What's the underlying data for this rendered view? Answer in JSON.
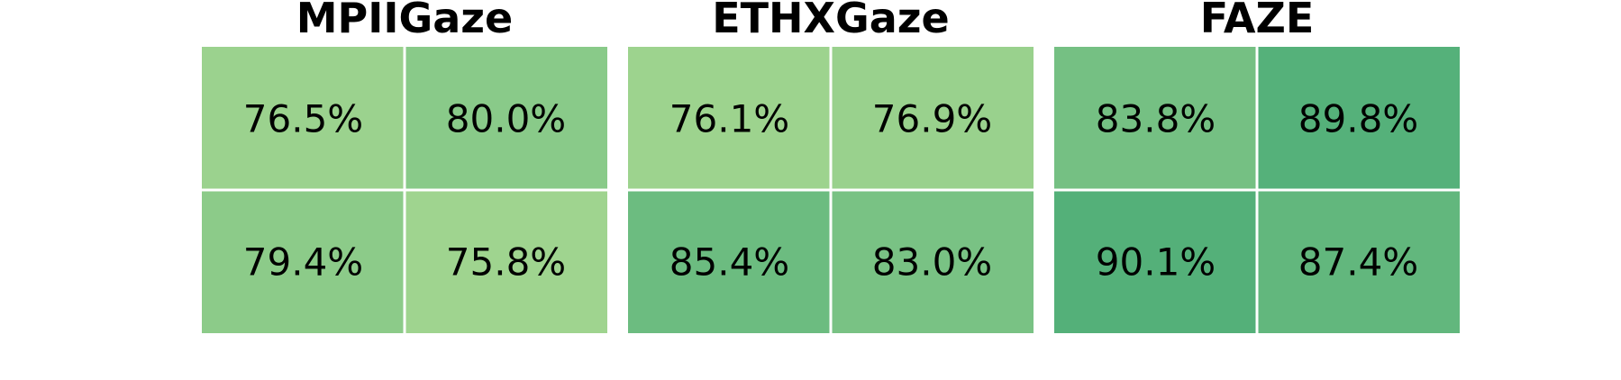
{
  "chart_data": [
    {
      "type": "heatmap",
      "title": "MPIIGaze",
      "rows": 2,
      "cols": 2,
      "values": [
        [
          76.5,
          80.0
        ],
        [
          79.4,
          75.8
        ]
      ],
      "labels": [
        [
          "76.5%",
          "80.0%"
        ],
        [
          "79.4%",
          "75.8%"
        ]
      ]
    },
    {
      "type": "heatmap",
      "title": "ETHXGaze",
      "rows": 2,
      "cols": 2,
      "values": [
        [
          76.1,
          76.9
        ],
        [
          85.4,
          83.0
        ]
      ],
      "labels": [
        [
          "76.1%",
          "76.9%"
        ],
        [
          "85.4%",
          "83.0%"
        ]
      ]
    },
    {
      "type": "heatmap",
      "title": "FAZE",
      "rows": 2,
      "cols": 2,
      "values": [
        [
          83.8,
          89.8
        ],
        [
          90.1,
          87.4
        ]
      ],
      "labels": [
        [
          "83.8%",
          "89.8%"
        ],
        [
          "90.1%",
          "87.4%"
        ]
      ]
    }
  ],
  "colors": {
    "scale_low": "#a3d690",
    "scale_high": "#4fae78",
    "grid_line": "#ffffff",
    "text": "#000000"
  },
  "color_range": [
    75.0,
    91.0
  ]
}
